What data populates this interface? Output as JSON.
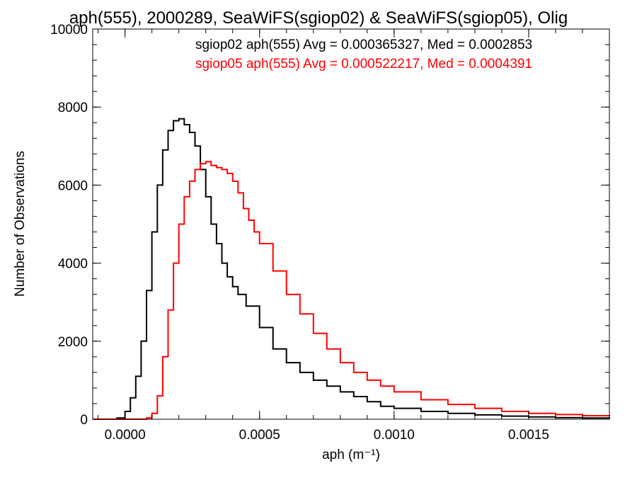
{
  "chart_data": {
    "type": "line",
    "title": "aph(555), 2000289, SeaWiFS(sgiop02) & SeaWiFS(sgiop05), Olig",
    "xlabel": "aph (m⁻¹)",
    "ylabel": "Number of Observations",
    "xlim": [
      -0.00012,
      0.0018
    ],
    "ylim": [
      0,
      10000
    ],
    "grid": false,
    "x_ticks": [
      "0.0000",
      "0.0005",
      "0.0010",
      "0.0015"
    ],
    "y_ticks": [
      "0",
      "2000",
      "4000",
      "6000",
      "8000",
      "10000"
    ],
    "annotations": [
      {
        "text": "sgiop02 aph(555) Avg = 0.000365327, Med = 0.0002853",
        "color": "#000000"
      },
      {
        "text": "sgiop05 aph(555) Avg = 0.000522217, Med = 0.0004391",
        "color": "#ff0000"
      }
    ],
    "series": [
      {
        "name": "sgiop02",
        "color": "#000000",
        "x": [
          -0.00012,
          -5e-05,
          -3e-05,
          0.0,
          2e-05,
          4e-05,
          6e-05,
          8e-05,
          0.0001,
          0.00012,
          0.00014,
          0.00016,
          0.00018,
          0.0002,
          0.00022,
          0.00024,
          0.00026,
          0.00028,
          0.0003,
          0.00032,
          0.00034,
          0.00036,
          0.00038,
          0.0004,
          0.00042,
          0.00045,
          0.0005,
          0.00055,
          0.0006,
          0.00065,
          0.0007,
          0.00075,
          0.0008,
          0.00085,
          0.0009,
          0.00095,
          0.001,
          0.0011,
          0.0012,
          0.0013,
          0.0014,
          0.0015,
          0.0016,
          0.0017,
          0.0018
        ],
        "values": [
          0,
          0,
          30,
          200,
          550,
          1100,
          2000,
          3300,
          4800,
          6000,
          6900,
          7400,
          7650,
          7700,
          7550,
          7350,
          7000,
          6400,
          5700,
          5000,
          4500,
          4000,
          3650,
          3400,
          3200,
          2900,
          2350,
          1800,
          1450,
          1200,
          1000,
          850,
          700,
          580,
          450,
          330,
          280,
          200,
          150,
          110,
          80,
          60,
          40,
          30,
          20
        ]
      },
      {
        "name": "sgiop05",
        "color": "#ff0000",
        "x": [
          -0.00012,
          6e-05,
          8e-05,
          0.0001,
          0.00012,
          0.00014,
          0.00016,
          0.00018,
          0.0002,
          0.00022,
          0.00024,
          0.00026,
          0.00028,
          0.0003,
          0.00032,
          0.00034,
          0.00036,
          0.00038,
          0.0004,
          0.00042,
          0.00044,
          0.00046,
          0.00048,
          0.0005,
          0.00055,
          0.0006,
          0.00065,
          0.0007,
          0.00075,
          0.0008,
          0.00085,
          0.0009,
          0.00095,
          0.001,
          0.0011,
          0.0012,
          0.0013,
          0.0014,
          0.0015,
          0.0016,
          0.0017,
          0.0018
        ],
        "values": [
          0,
          0,
          30,
          150,
          600,
          1600,
          2800,
          4000,
          5000,
          5700,
          6100,
          6400,
          6550,
          6600,
          6500,
          6450,
          6400,
          6300,
          6100,
          5800,
          5400,
          5100,
          4800,
          4500,
          3800,
          3200,
          2700,
          2200,
          1800,
          1450,
          1200,
          1000,
          850,
          700,
          500,
          380,
          280,
          200,
          150,
          120,
          90,
          70
        ]
      }
    ]
  }
}
